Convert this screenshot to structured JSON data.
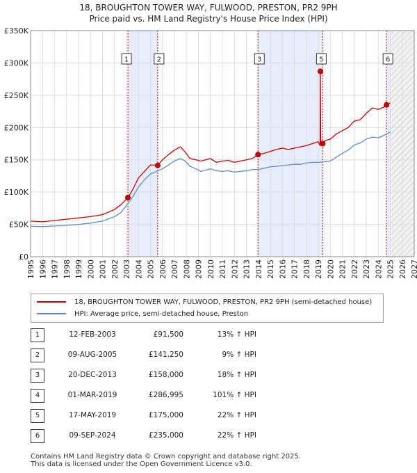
{
  "chart_data": {
    "type": "line",
    "title": "18, BROUGHTON TOWER WAY, FULWOOD, PRESTON, PR2 9PH",
    "subtitle": "Price paid vs. HM Land Registry's House Price Index (HPI)",
    "xlabel": "",
    "ylabel": "",
    "xlim": [
      1995,
      2027
    ],
    "ylim": [
      0,
      350000
    ],
    "x_ticks": [
      "1995",
      "1996",
      "1997",
      "1998",
      "1999",
      "2000",
      "2001",
      "2002",
      "2003",
      "2004",
      "2005",
      "2006",
      "2007",
      "2008",
      "2009",
      "2010",
      "2011",
      "2012",
      "2013",
      "2014",
      "2015",
      "2016",
      "2017",
      "2018",
      "2019",
      "2020",
      "2021",
      "2022",
      "2023",
      "2024",
      "2025",
      "2026",
      "2027"
    ],
    "y_ticks": [
      {
        "value": 0,
        "label": "£0"
      },
      {
        "value": 50000,
        "label": "£50K"
      },
      {
        "value": 100000,
        "label": "£100K"
      },
      {
        "value": 150000,
        "label": "£150K"
      },
      {
        "value": 200000,
        "label": "£200K"
      },
      {
        "value": 250000,
        "label": "£250K"
      },
      {
        "value": 300000,
        "label": "£300K"
      },
      {
        "value": 350000,
        "label": "£350K"
      }
    ],
    "forecast_start": 2025.0,
    "shaded_periods": [
      [
        2003.12,
        2005.6
      ],
      [
        2013.97,
        2019.37
      ],
      [
        2024.69,
        2025.0
      ]
    ],
    "series": [
      {
        "name": "18, BROUGHTON TOWER WAY, FULWOOD, PRESTON, PR2 9PH (semi-detached house)",
        "color": "#cc0000",
        "x": [
          1995,
          1996,
          1997,
          1998,
          1999,
          2000,
          2001,
          2002,
          2002.5,
          2003.12,
          2003.5,
          2004,
          2004.5,
          2005,
          2005.6,
          2006,
          2006.5,
          2007,
          2007.5,
          2007.9,
          2008.3,
          2008.8,
          2009.2,
          2009.6,
          2010,
          2010.5,
          2011,
          2011.5,
          2012,
          2012.5,
          2013,
          2013.5,
          2013.97,
          2014.5,
          2015,
          2015.5,
          2016,
          2016.5,
          2017,
          2017.5,
          2018,
          2018.5,
          2019.0,
          2019.15,
          2019.17,
          2019.2,
          2019.37,
          2019.6,
          2020,
          2020.5,
          2021,
          2021.5,
          2022,
          2022.5,
          2023,
          2023.5,
          2024,
          2024.5,
          2024.69,
          2025.0
        ],
        "values": [
          55000,
          54000,
          56000,
          58000,
          60000,
          62000,
          65000,
          73000,
          80000,
          91500,
          103000,
          122000,
          132000,
          142000,
          141250,
          150000,
          158000,
          165000,
          170000,
          162000,
          152000,
          150000,
          148000,
          150000,
          152000,
          146000,
          148000,
          149000,
          146000,
          148000,
          150000,
          152000,
          158000,
          160000,
          163000,
          166000,
          168000,
          166000,
          168000,
          170000,
          172000,
          175000,
          178000,
          172000,
          286995,
          175000,
          175000,
          180000,
          182000,
          190000,
          195000,
          200000,
          210000,
          212000,
          222000,
          230000,
          228000,
          232000,
          235000,
          238000
        ]
      },
      {
        "name": "HPI: Average price, semi-detached house, Preston",
        "color": "#5b8ccc",
        "x": [
          1995,
          1996,
          1997,
          1998,
          1999,
          2000,
          2001,
          2002,
          2002.5,
          2003,
          2003.5,
          2004,
          2004.5,
          2005,
          2005.5,
          2006,
          2006.5,
          2007,
          2007.5,
          2007.9,
          2008.3,
          2008.8,
          2009.2,
          2009.6,
          2010,
          2010.5,
          2011,
          2011.5,
          2012,
          2012.5,
          2013,
          2013.5,
          2014,
          2014.5,
          2015,
          2015.5,
          2016,
          2016.5,
          2017,
          2017.5,
          2018,
          2018.5,
          2019,
          2019.5,
          2020,
          2020.5,
          2021,
          2021.5,
          2022,
          2022.5,
          2023,
          2023.5,
          2024,
          2024.5,
          2025.0
        ],
        "values": [
          47000,
          46500,
          47500,
          48500,
          50000,
          52000,
          55000,
          62000,
          68000,
          79000,
          92000,
          108000,
          119000,
          128000,
          132000,
          136000,
          142000,
          148000,
          152000,
          148000,
          140000,
          136000,
          132000,
          134000,
          136000,
          133000,
          132000,
          133000,
          131000,
          132000,
          133000,
          135000,
          135000,
          137000,
          139000,
          140000,
          141000,
          142000,
          143000,
          143000,
          145000,
          146000,
          146000,
          147000,
          148000,
          154000,
          160000,
          165000,
          173000,
          176000,
          182000,
          185000,
          184000,
          188000,
          193000
        ]
      }
    ],
    "transactions": [
      {
        "n": "1",
        "x": 2003.12,
        "value": 91500,
        "date": "12-FEB-2003",
        "price": "£91,500",
        "hpi": "13% ↑ HPI"
      },
      {
        "n": "2",
        "x": 2005.6,
        "value": 141250,
        "date": "09-AUG-2005",
        "price": "£141,250",
        "hpi": "9% ↑ HPI"
      },
      {
        "n": "3",
        "x": 2013.97,
        "value": 158000,
        "date": "20-DEC-2013",
        "price": "£158,000",
        "hpi": "18% ↑ HPI"
      },
      {
        "n": "4",
        "x": 2019.17,
        "value": 286995,
        "date": "01-MAR-2019",
        "price": "£286,995",
        "hpi": "101% ↑ HPI"
      },
      {
        "n": "5",
        "x": 2019.37,
        "value": 175000,
        "date": "17-MAY-2019",
        "price": "£175,000",
        "hpi": "22% ↑ HPI"
      },
      {
        "n": "6",
        "x": 2024.69,
        "value": 235000,
        "date": "09-SEP-2024",
        "price": "£235,000",
        "hpi": "22% ↑ HPI"
      }
    ],
    "chart_markers": [
      {
        "n": "1",
        "x": 2003.12
      },
      {
        "n": "2",
        "x": 2005.6
      },
      {
        "n": "3",
        "x": 2013.97
      },
      {
        "n": "5",
        "x": 2019.37
      },
      {
        "n": "6",
        "x": 2024.69
      }
    ]
  },
  "footer": {
    "line1": "Contains HM Land Registry data © Crown copyright and database right 2025.",
    "line2": "This data is licensed under the Open Government Licence v3.0."
  }
}
